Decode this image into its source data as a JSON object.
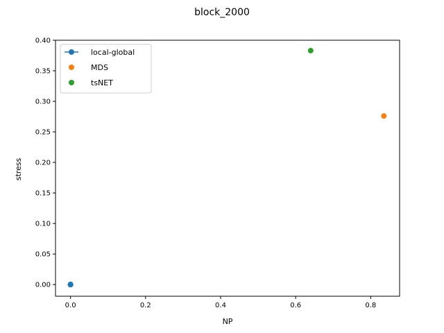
{
  "chart_data": {
    "type": "scatter",
    "title": "block_2000",
    "xlabel": "NP",
    "ylabel": "stress",
    "xlim": [
      -0.04,
      0.877
    ],
    "ylim": [
      -0.0191,
      0.4
    ],
    "xticks": [
      0.0,
      0.2,
      0.4,
      0.6,
      0.8
    ],
    "xtick_labels": [
      "0.0",
      "0.2",
      "0.4",
      "0.6",
      "0.8"
    ],
    "yticks": [
      0.0,
      0.05,
      0.1,
      0.15,
      0.2,
      0.25,
      0.3,
      0.35,
      0.4
    ],
    "ytick_labels": [
      "0.00",
      "0.05",
      "0.10",
      "0.15",
      "0.20",
      "0.25",
      "0.30",
      "0.35",
      "0.40"
    ],
    "grid": false,
    "legend_position": "top-left",
    "series": [
      {
        "name": "local-global",
        "color": "#1f77b4",
        "style": "line-marker",
        "x": [
          0.0,
          0.0,
          0.0,
          0.0,
          0.0
        ],
        "y": [
          0.0,
          0.0,
          0.0,
          0.0,
          0.0
        ]
      },
      {
        "name": "MDS",
        "color": "#ff7f0e",
        "style": "marker",
        "x": [
          0.835
        ],
        "y": [
          0.276
        ]
      },
      {
        "name": "tsNET",
        "color": "#2ca02c",
        "style": "marker",
        "x": [
          0.64
        ],
        "y": [
          0.383
        ]
      }
    ]
  }
}
